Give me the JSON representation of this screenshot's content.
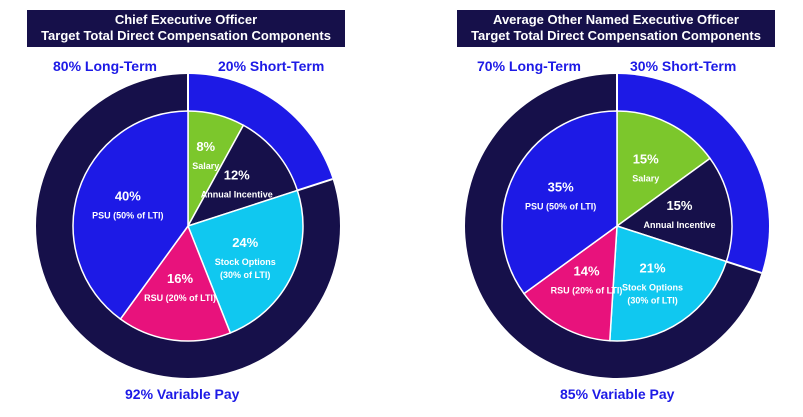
{
  "colors": {
    "navy": "#16104a",
    "blue": "#1d1ae6",
    "green": "#7cc72c",
    "cyan": "#10c8f0",
    "pink": "#e8127c",
    "white": "#ffffff"
  },
  "chart_data": [
    {
      "type": "pie",
      "title_line1": "Chief Executive Officer",
      "title_line2": "Target Total Direct Compensation Components",
      "outer_ring": {
        "long_term_label": "80% Long-Term",
        "short_term_label": "20% Short-Term",
        "long_term": 80,
        "short_term": 20
      },
      "variable_pay_label": "92% Variable Pay",
      "variable_pay": 92,
      "slices": [
        {
          "pct_label": "8%",
          "label": "Salary",
          "value": 8,
          "color": "#7cc72c"
        },
        {
          "pct_label": "12%",
          "label": "Annual Incentive",
          "value": 12,
          "color": "#16104a"
        },
        {
          "pct_label": "24%",
          "label": "Stock Options (30% of LTI)",
          "value": 24,
          "color": "#10c8f0"
        },
        {
          "pct_label": "16%",
          "label": "RSU (20% of LTI)",
          "value": 16,
          "color": "#e8127c"
        },
        {
          "pct_label": "40%",
          "label": "PSU (50% of LTI)",
          "value": 40,
          "color": "#1d1ae6"
        }
      ]
    },
    {
      "type": "pie",
      "title_line1": "Average Other Named Executive Officer",
      "title_line2": "Target Total Direct Compensation Components",
      "outer_ring": {
        "long_term_label": "70% Long-Term",
        "short_term_label": "30% Short-Term",
        "long_term": 70,
        "short_term": 30
      },
      "variable_pay_label": "85% Variable Pay",
      "variable_pay": 85,
      "slices": [
        {
          "pct_label": "15%",
          "label": "Salary",
          "value": 15,
          "color": "#7cc72c"
        },
        {
          "pct_label": "15%",
          "label": "Annual Incentive",
          "value": 15,
          "color": "#16104a"
        },
        {
          "pct_label": "21%",
          "label": "Stock Options (30% of LTI)",
          "value": 21,
          "color": "#10c8f0"
        },
        {
          "pct_label": "14%",
          "label": "RSU (20% of LTI)",
          "value": 14,
          "color": "#e8127c"
        },
        {
          "pct_label": "35%",
          "label": "PSU (50% of LTI)",
          "value": 35,
          "color": "#1d1ae6"
        }
      ]
    }
  ]
}
